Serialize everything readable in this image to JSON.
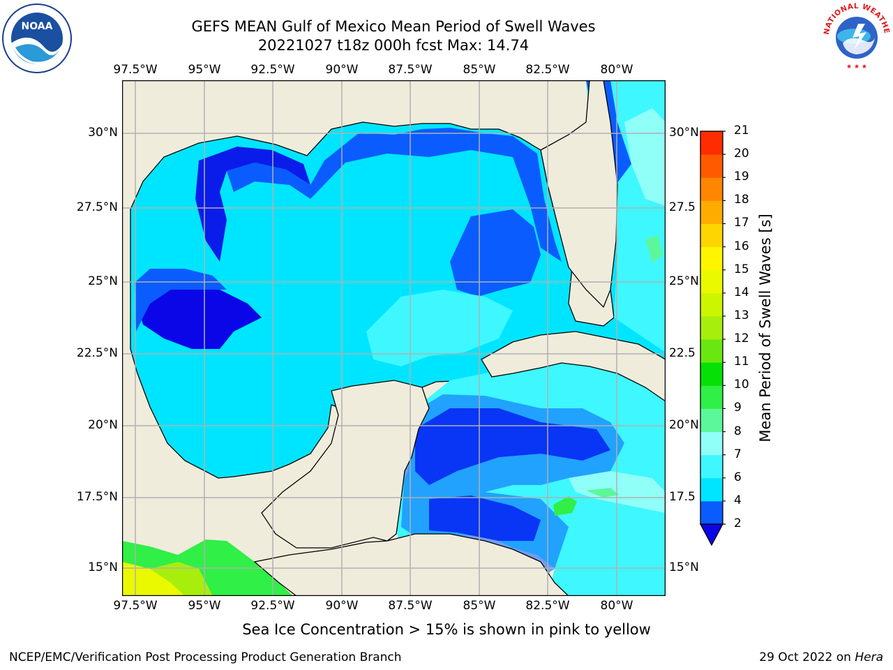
{
  "title": {
    "line1": "GEFS MEAN Gulf of Mexico Mean Period of Swell Waves",
    "line2": "20221027 t18z 000h fcst   Max: 14.74"
  },
  "map": {
    "lon_labels": [
      "97.5°W",
      "95°W",
      "92.5°W",
      "90°W",
      "87.5°W",
      "85°W",
      "82.5°W",
      "80°W"
    ],
    "lat_labels_left": [
      "30°N",
      "27.5°N",
      "25°N",
      "22.5°N",
      "20°N",
      "17.5°N",
      "15°N"
    ],
    "lat_labels_right": [
      "30°N",
      "27.5",
      "25°N",
      "22.5",
      "20°N",
      "17.5",
      "15°N"
    ],
    "land_color": "#efecdc",
    "grid_color": "#b0b0b0"
  },
  "colorbar": {
    "label": "Mean Period of Swell Waves [s]",
    "ticks": [
      "2",
      "4",
      "6",
      "7",
      "8",
      "9",
      "10",
      "11",
      "12",
      "13",
      "14",
      "15",
      "16",
      "17",
      "18",
      "19",
      "20",
      "21"
    ],
    "colors": [
      "#0a5cff",
      "#00e5ff",
      "#3ff7ff",
      "#8ffff8",
      "#5cf79a",
      "#30ef46",
      "#06e006",
      "#69e710",
      "#a8ee0c",
      "#ccf500",
      "#eaf900",
      "#fff500",
      "#ffd500",
      "#ffac00",
      "#ff8600",
      "#ff5a00",
      "#ff2c00",
      "#ff0000"
    ],
    "under_color": "#0b06e8"
  },
  "note": "Sea Ice Concentration > 15% is shown in pink to yellow",
  "footer": {
    "left": "NCEP/EMC/Verification Post Processing Product Generation Branch",
    "right_date": "29 Oct 2022 on ",
    "right_host": "Hera"
  },
  "logos": {
    "left_text": "NOAA",
    "right_text": "NATIONAL WEATHER SERVICE"
  }
}
